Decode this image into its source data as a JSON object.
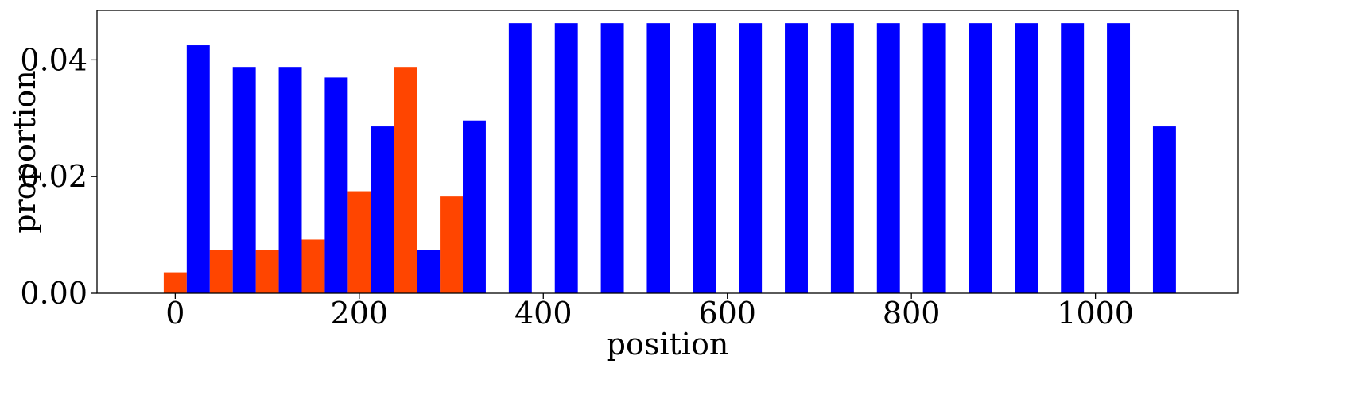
{
  "chart_data": {
    "type": "bar",
    "title": "",
    "xlabel": "position",
    "ylabel": "proportion",
    "xlim": [
      -85,
      1155
    ],
    "ylim": [
      0,
      0.0485
    ],
    "grid": false,
    "legend": "none",
    "bar_width": 25,
    "xticks": [
      {
        "value": 0,
        "label": "0"
      },
      {
        "value": 200,
        "label": "200"
      },
      {
        "value": 400,
        "label": "400"
      },
      {
        "value": 600,
        "label": "600"
      },
      {
        "value": 800,
        "label": "800"
      },
      {
        "value": 1000,
        "label": "1000"
      }
    ],
    "yticks": [
      {
        "value": 0.0,
        "label": "0.00"
      },
      {
        "value": 0.02,
        "label": "0.02"
      },
      {
        "value": 0.04,
        "label": "0.04"
      }
    ],
    "series": [
      {
        "color": "#ff4500",
        "x": [
          0,
          50,
          100,
          150,
          200,
          250,
          300
        ],
        "values": [
          0.0036,
          0.0074,
          0.0074,
          0.0092,
          0.0175,
          0.0388,
          0.0166
        ]
      },
      {
        "color": "#0000ff",
        "x": [
          25,
          75,
          125,
          175,
          225,
          275,
          325,
          375,
          425,
          475,
          525,
          575,
          625,
          675,
          725,
          775,
          825,
          875,
          925,
          975,
          1025,
          1075
        ],
        "values": [
          0.0425,
          0.0388,
          0.0388,
          0.037,
          0.0286,
          0.0074,
          0.0296,
          0.0463,
          0.0463,
          0.0463,
          0.0463,
          0.0463,
          0.0463,
          0.0463,
          0.0463,
          0.0463,
          0.0463,
          0.0463,
          0.0463,
          0.0463,
          0.0463,
          0.0286
        ]
      }
    ]
  }
}
